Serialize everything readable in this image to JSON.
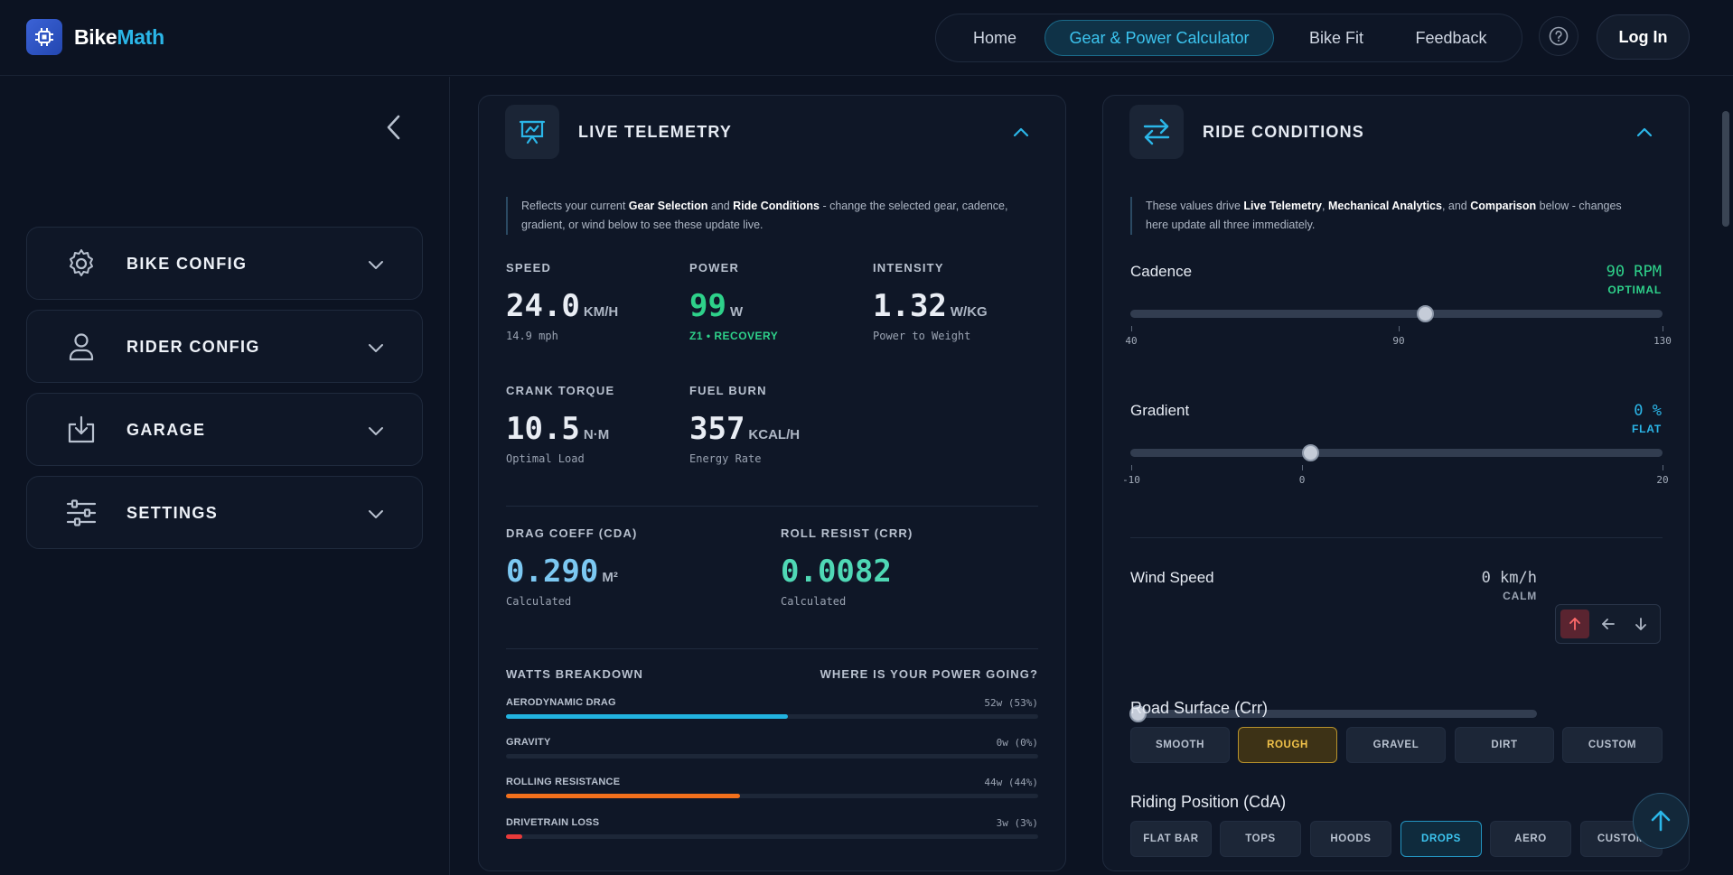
{
  "header": {
    "logo_bike": "Bike",
    "logo_math": "Math",
    "nav": [
      {
        "label": "Home"
      },
      {
        "label": "Gear & Power Calculator"
      },
      {
        "label": "Bike Fit"
      },
      {
        "label": "Feedback"
      }
    ],
    "login_label": "Log In"
  },
  "sidebar": {
    "items": [
      {
        "label": "BIKE CONFIG",
        "icon": "gear-icon"
      },
      {
        "label": "RIDER CONFIG",
        "icon": "user-icon"
      },
      {
        "label": "GARAGE",
        "icon": "download-box-icon"
      },
      {
        "label": "SETTINGS",
        "icon": "sliders-icon"
      }
    ]
  },
  "telemetry": {
    "title": "LIVE TELEMETRY",
    "note_pre": "Reflects your current ",
    "note_b1": "Gear Selection",
    "note_mid": " and ",
    "note_b2": "Ride Conditions",
    "note_post": " - change the selected gear, cadence, gradient, or wind below to see these update live.",
    "speed": {
      "label": "SPEED",
      "value": "24.0",
      "unit": "KM/H",
      "sub": "14.9 mph"
    },
    "power": {
      "label": "POWER",
      "value": "99",
      "unit": "W",
      "sub": "Z1 • RECOVERY"
    },
    "intensity": {
      "label": "INTENSITY",
      "value": "1.32",
      "unit": "W/KG",
      "sub": "Power to Weight"
    },
    "torque": {
      "label": "CRANK TORQUE",
      "value": "10.5",
      "unit": "N·M",
      "sub": "Optimal Load"
    },
    "fuel": {
      "label": "FUEL BURN",
      "value": "357",
      "unit": "KCAL/H",
      "sub": "Energy Rate"
    },
    "cda": {
      "label": "DRAG COEFF (CDA)",
      "value": "0.290",
      "unit": "M²",
      "sub": "Calculated"
    },
    "crr": {
      "label": "ROLL RESIST (CRR)",
      "value": "0.0082",
      "sub": "Calculated"
    },
    "breakdown_title": "WATTS BREAKDOWN",
    "breakdown_question": "WHERE IS YOUR POWER GOING?",
    "breakdown": [
      {
        "name": "AERODYNAMIC DRAG",
        "value": "52w (53%)",
        "percent": 53,
        "color": "#22b3e0"
      },
      {
        "name": "GRAVITY",
        "value": "0w (0%)",
        "percent": 0,
        "color": "#8a94a6"
      },
      {
        "name": "ROLLING RESISTANCE",
        "value": "44w (44%)",
        "percent": 44,
        "color": "#f2701c"
      },
      {
        "name": "DRIVETRAIN LOSS",
        "value": "3w (3%)",
        "percent": 3,
        "color": "#e83a3a"
      }
    ]
  },
  "conditions": {
    "title": "RIDE CONDITIONS",
    "note_pre": "These values drive ",
    "note_b1": "Live Telemetry",
    "note_sep": ", ",
    "note_b2": "Mechanical Analytics",
    "note_and": ", and ",
    "note_b3": "Comparison",
    "note_post": " below - changes here update all three immediately.",
    "cadence": {
      "label": "Cadence",
      "value": "90 RPM",
      "status": "OPTIMAL",
      "min": 40,
      "mid": 90,
      "max": 130,
      "current": 90,
      "tick_min": "40",
      "tick_mid": "90",
      "tick_max": "130"
    },
    "gradient": {
      "label": "Gradient",
      "value": "0 %",
      "status": "FLAT",
      "min": -10,
      "mid": 0,
      "max": 20,
      "current": 0,
      "tick_min": "-10",
      "tick_mid": "0",
      "tick_max": "20"
    },
    "wind": {
      "label": "Wind Speed",
      "value": "0 km/h",
      "status": "CALM",
      "min": 0,
      "max": 50,
      "current": 0,
      "tick_min": "0",
      "tick_max": "50"
    },
    "surface_label": "Road Surface (Crr)",
    "surfaces": [
      "SMOOTH",
      "ROUGH",
      "GRAVEL",
      "DIRT",
      "CUSTOM"
    ],
    "surface_selected": "ROUGH",
    "position_label": "Riding Position (CdA)",
    "positions": [
      "FLAT BAR",
      "TOPS",
      "HOODS",
      "DROPS",
      "AERO",
      "CUSTOM"
    ],
    "position_selected": "DROPS"
  },
  "colors": {
    "accent": "#2bb6e8",
    "green": "#2ed18a",
    "cda_blue": "#7cc8f2",
    "crr_green": "#4fd8b5",
    "gold": "#f2c34a"
  }
}
